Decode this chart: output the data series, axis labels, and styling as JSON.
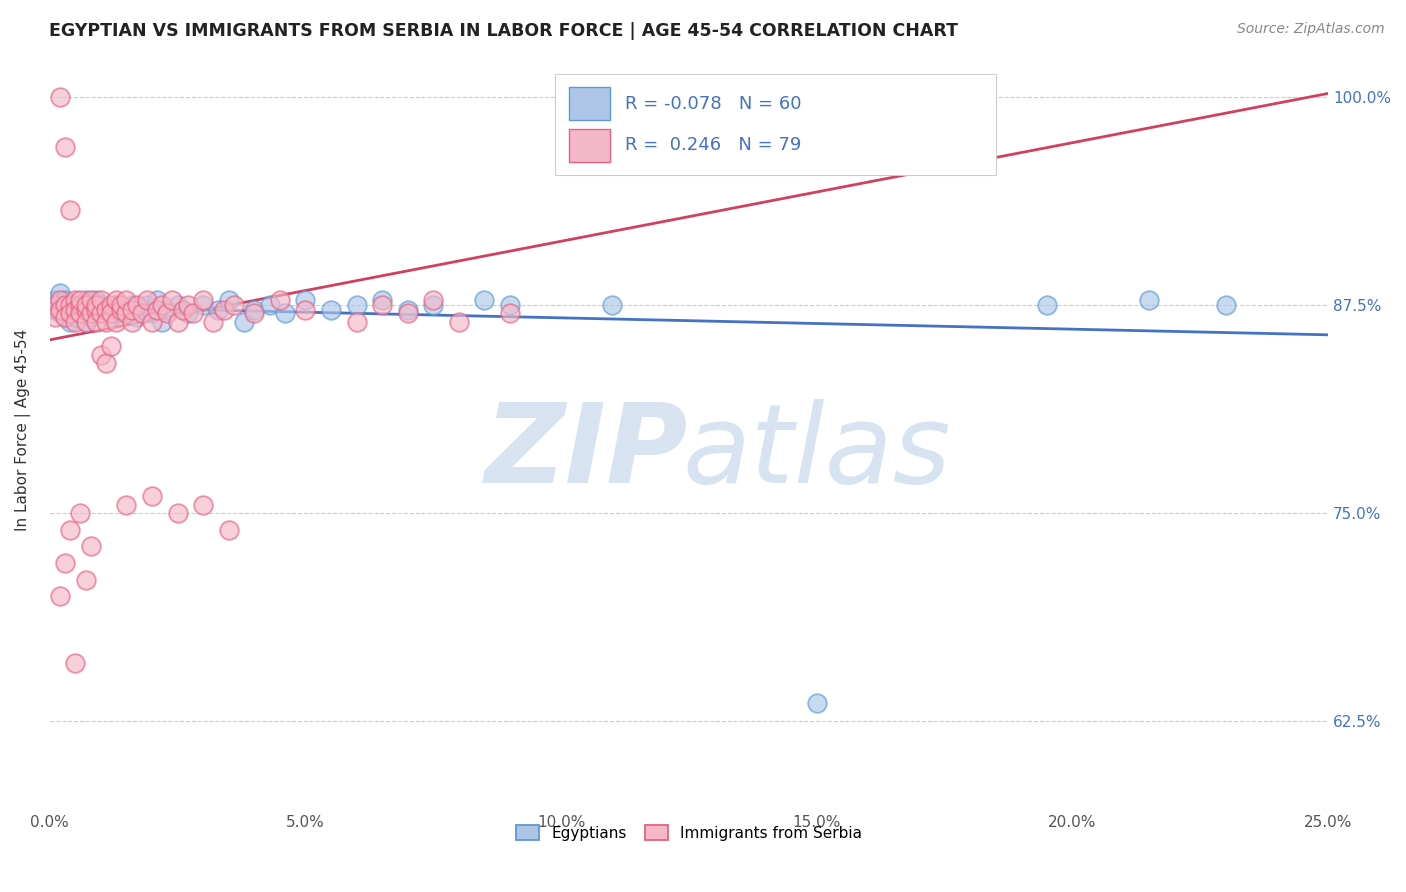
{
  "title": "EGYPTIAN VS IMMIGRANTS FROM SERBIA IN LABOR FORCE | AGE 45-54 CORRELATION CHART",
  "source": "Source: ZipAtlas.com",
  "ylabel": "In Labor Force | Age 45-54",
  "xlim": [
    0.0,
    0.25
  ],
  "ylim": [
    0.575,
    1.025
  ],
  "xticks": [
    0.0,
    0.05,
    0.1,
    0.15,
    0.2,
    0.25
  ],
  "xticklabels": [
    "0.0%",
    "5.0%",
    "10.0%",
    "15.0%",
    "20.0%",
    "25.0%"
  ],
  "yticks": [
    0.625,
    0.75,
    0.875,
    1.0
  ],
  "yticklabels": [
    "62.5%",
    "75.0%",
    "87.5%",
    "100.0%"
  ],
  "r_blue": -0.078,
  "n_blue": 60,
  "r_pink": 0.246,
  "n_pink": 79,
  "blue_color": "#adc6e8",
  "pink_color": "#f5b8c8",
  "blue_edge_color": "#5b9bd5",
  "pink_edge_color": "#e86080",
  "blue_line_color": "#4472c4",
  "pink_line_color": "#d04060",
  "legend_label_blue": "Egyptians",
  "legend_label_pink": "Immigrants from Serbia",
  "blue_trend_x": [
    0.0,
    0.25
  ],
  "blue_trend_y": [
    0.874,
    0.857
  ],
  "pink_trend_x": [
    0.0,
    0.25
  ],
  "pink_trend_y": [
    0.854,
    1.002
  ],
  "blue_x": [
    0.001,
    0.001,
    0.002,
    0.002,
    0.002,
    0.003,
    0.003,
    0.003,
    0.004,
    0.004,
    0.004,
    0.005,
    0.005,
    0.005,
    0.006,
    0.006,
    0.007,
    0.007,
    0.007,
    0.008,
    0.008,
    0.009,
    0.009,
    0.01,
    0.01,
    0.011,
    0.012,
    0.013,
    0.014,
    0.015,
    0.016,
    0.017,
    0.018,
    0.019,
    0.02,
    0.021,
    0.022,
    0.023,
    0.025,
    0.027,
    0.03,
    0.033,
    0.035,
    0.038,
    0.04,
    0.043,
    0.046,
    0.05,
    0.055,
    0.06,
    0.065,
    0.07,
    0.075,
    0.085,
    0.09,
    0.11,
    0.15,
    0.195,
    0.215,
    0.23
  ],
  "blue_y": [
    0.878,
    0.872,
    0.875,
    0.87,
    0.882,
    0.875,
    0.868,
    0.878,
    0.872,
    0.875,
    0.865,
    0.875,
    0.872,
    0.868,
    0.875,
    0.87,
    0.878,
    0.865,
    0.872,
    0.875,
    0.868,
    0.872,
    0.878,
    0.87,
    0.875,
    0.872,
    0.868,
    0.875,
    0.87,
    0.872,
    0.875,
    0.868,
    0.872,
    0.875,
    0.87,
    0.878,
    0.865,
    0.872,
    0.875,
    0.87,
    0.875,
    0.872,
    0.878,
    0.865,
    0.872,
    0.875,
    0.87,
    0.878,
    0.872,
    0.875,
    0.878,
    0.872,
    0.875,
    0.878,
    0.875,
    0.875,
    0.636,
    0.875,
    0.878,
    0.875
  ],
  "pink_x": [
    0.001,
    0.001,
    0.002,
    0.002,
    0.002,
    0.003,
    0.003,
    0.003,
    0.004,
    0.004,
    0.004,
    0.005,
    0.005,
    0.005,
    0.006,
    0.006,
    0.006,
    0.007,
    0.007,
    0.007,
    0.008,
    0.008,
    0.009,
    0.009,
    0.009,
    0.01,
    0.01,
    0.011,
    0.011,
    0.012,
    0.012,
    0.013,
    0.013,
    0.014,
    0.014,
    0.015,
    0.015,
    0.016,
    0.016,
    0.017,
    0.018,
    0.019,
    0.02,
    0.021,
    0.022,
    0.023,
    0.024,
    0.025,
    0.026,
    0.027,
    0.028,
    0.03,
    0.032,
    0.034,
    0.036,
    0.04,
    0.045,
    0.05,
    0.06,
    0.065,
    0.07,
    0.075,
    0.08,
    0.09,
    0.01,
    0.011,
    0.012,
    0.002,
    0.003,
    0.004,
    0.005,
    0.006,
    0.007,
    0.008,
    0.015,
    0.02,
    0.025,
    0.03,
    0.035
  ],
  "pink_y": [
    0.875,
    0.868,
    1.0,
    0.878,
    0.872,
    0.97,
    0.875,
    0.868,
    0.932,
    0.875,
    0.87,
    0.878,
    0.872,
    0.865,
    0.875,
    0.87,
    0.878,
    0.872,
    0.865,
    0.875,
    0.87,
    0.878,
    0.872,
    0.865,
    0.875,
    0.87,
    0.878,
    0.872,
    0.865,
    0.875,
    0.87,
    0.878,
    0.865,
    0.872,
    0.875,
    0.87,
    0.878,
    0.865,
    0.872,
    0.875,
    0.87,
    0.878,
    0.865,
    0.872,
    0.875,
    0.87,
    0.878,
    0.865,
    0.872,
    0.875,
    0.87,
    0.878,
    0.865,
    0.872,
    0.875,
    0.87,
    0.878,
    0.872,
    0.865,
    0.875,
    0.87,
    0.878,
    0.865,
    0.87,
    0.845,
    0.84,
    0.85,
    0.7,
    0.72,
    0.74,
    0.66,
    0.75,
    0.71,
    0.73,
    0.755,
    0.76,
    0.75,
    0.755,
    0.74
  ]
}
